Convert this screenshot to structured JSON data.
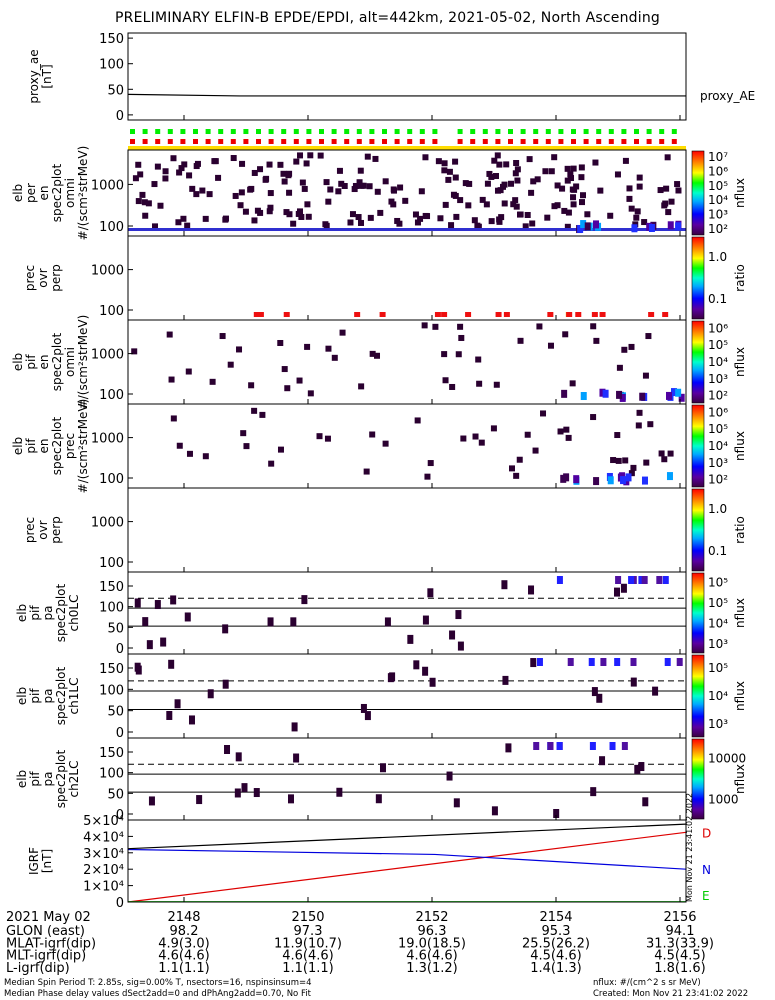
{
  "title": "PRELIMINARY ELFIN-B EPDE/EPDI, alt=442km, 2021-05-02, North Ascending",
  "stamp": "Mon Nov 21 23:41:02 2022",
  "colors": {
    "bg_dark": "#2a0030",
    "trace": "#000000",
    "igrf_d": "#dd0000",
    "igrf_n": "#0000dd",
    "igrf_e": "#00cc00",
    "flag_green": "#00ee00",
    "flag_red": "#ee0000",
    "flag_yellow": "#ffdd00"
  },
  "chart_data": [
    {
      "id": "proxy_ae",
      "type": "line",
      "ylabel": "proxy_ae\n[nT]",
      "ytick_labels": [
        "0",
        "50",
        "100",
        "150"
      ],
      "ylim": [
        -10,
        160
      ],
      "legend": "proxy_AE",
      "series": [
        {
          "name": "proxy_AE",
          "x": [
            0,
            0.2,
            0.6,
            1.0
          ],
          "y": [
            40,
            37,
            37,
            37
          ]
        }
      ]
    },
    {
      "id": "epde_spectra",
      "type": "heatmap",
      "ylabel": "elb\nper\nen\nspec2plot\nomni\n#/(scm²strMeV)",
      "ytick_labels": [
        "100",
        "1000"
      ],
      "colorbar": {
        "label": "nflux",
        "ticks": [
          "10²",
          "10³",
          "10⁴",
          "10⁵",
          "10⁶",
          "10⁷"
        ]
      }
    },
    {
      "id": "epde_ratio",
      "type": "heatmap",
      "ylabel": "prec\novr\nperp",
      "ytick_labels": [
        "100",
        "1000"
      ],
      "colorbar": {
        "label": "ratio",
        "ticks": [
          "0.1",
          "1.0"
        ]
      }
    },
    {
      "id": "epdi_spectra",
      "type": "heatmap",
      "ylabel": "elb\npif\nen\nspec2plot\nomni\n#/(scm²strMeV)",
      "ytick_labels": [
        "100",
        "1000"
      ],
      "colorbar": {
        "label": "nflux",
        "ticks": [
          "10²",
          "10³",
          "10⁴",
          "10⁵",
          "10⁶"
        ]
      }
    },
    {
      "id": "epdi_prec",
      "type": "heatmap",
      "ylabel": "elb\npif\nen\nspec2plot\nprec\n#/(scm²strMeV)",
      "ytick_labels": [
        "100",
        "1000"
      ],
      "colorbar": {
        "label": "nflux",
        "ticks": [
          "10²",
          "10³",
          "10⁴",
          "10⁵",
          "10⁶"
        ]
      }
    },
    {
      "id": "epdi_ratio",
      "type": "heatmap",
      "ylabel": "prec\novr\nperp",
      "ytick_labels": [
        "100",
        "1000"
      ],
      "colorbar": {
        "label": "ratio",
        "ticks": [
          "0.1",
          "1.0"
        ]
      }
    },
    {
      "id": "pa_ch0",
      "type": "heatmap",
      "ylabel": "elb\npif\npa\nspec2plot\nch0LC",
      "ytick_labels": [
        "0",
        "50",
        "100",
        "150"
      ],
      "colorbar": {
        "label": "nflux",
        "ticks": [
          "10³",
          "10⁴",
          "10⁵",
          "10⁵"
        ]
      }
    },
    {
      "id": "pa_ch1",
      "type": "heatmap",
      "ylabel": "elb\npif\npa\nspec2plot\nch1LC",
      "ytick_labels": [
        "0",
        "50",
        "100",
        "150"
      ],
      "colorbar": {
        "label": "nflux",
        "ticks": [
          "10³",
          "10⁴",
          "10⁵"
        ]
      }
    },
    {
      "id": "pa_ch2",
      "type": "heatmap",
      "ylabel": "elb\npif\npa\nspec2plot\nch2LC",
      "ytick_labels": [
        "0",
        "50",
        "100",
        "150"
      ],
      "colorbar": {
        "label": "nflux",
        "ticks": [
          "1000",
          "10000"
        ]
      }
    },
    {
      "id": "igrf",
      "type": "line",
      "ylabel": "IGRF\n[nT]",
      "ytick_labels": [
        "0",
        "1×10⁴",
        "2×10⁴",
        "3×10⁴",
        "4×10⁴",
        "5×10⁴"
      ],
      "ylim": [
        0,
        50000
      ],
      "series": [
        {
          "name": "D",
          "x": [
            0,
            1
          ],
          "y": [
            0,
            42500
          ]
        },
        {
          "name": "N",
          "x": [
            0,
            0.55,
            1
          ],
          "y": [
            32000,
            29000,
            20000
          ]
        },
        {
          "name": "E",
          "x": [
            0,
            1
          ],
          "y": [
            200,
            200
          ]
        },
        {
          "x": [
            0,
            1
          ],
          "y": [
            32500,
            47500
          ]
        }
      ]
    }
  ],
  "x_axis": {
    "date_label": "2021 May 02",
    "tick_labels": [
      "2148",
      "2150",
      "2152",
      "2154",
      "2156"
    ],
    "rows": [
      {
        "label": "GLON (east)",
        "values": [
          "98.2",
          "97.3",
          "96.3",
          "95.3",
          "94.1"
        ]
      },
      {
        "label": "MLAT-igrf(dip)",
        "values": [
          "4.9(3.0)",
          "11.9(10.7)",
          "19.0(18.5)",
          "25.5(26.2)",
          "31.3(33.9)"
        ]
      },
      {
        "label": "MLT-igrf(dip)",
        "values": [
          "4.6(4.6)",
          "4.6(4.6)",
          "4.6(4.6)",
          "4.5(4.6)",
          "4.5(4.5)"
        ]
      },
      {
        "label": "L-igrf(dip)",
        "values": [
          "1.1(1.1)",
          "1.1(1.1)",
          "1.3(1.2)",
          "1.4(1.3)",
          "1.8(1.6)"
        ]
      }
    ]
  },
  "footer": {
    "left1": "Median Spin Period T: 2.85s, sig=0.00% T, nsectors=16, nspinsinsum=4",
    "left2": "Median Phase delay values dSect2add=0 and dPhAng2add=0.70, No Fit",
    "right1": "nflux: #/(cm^2 s sr MeV)",
    "right2": "Created: Mon Nov 21 23:41:02 2022"
  }
}
